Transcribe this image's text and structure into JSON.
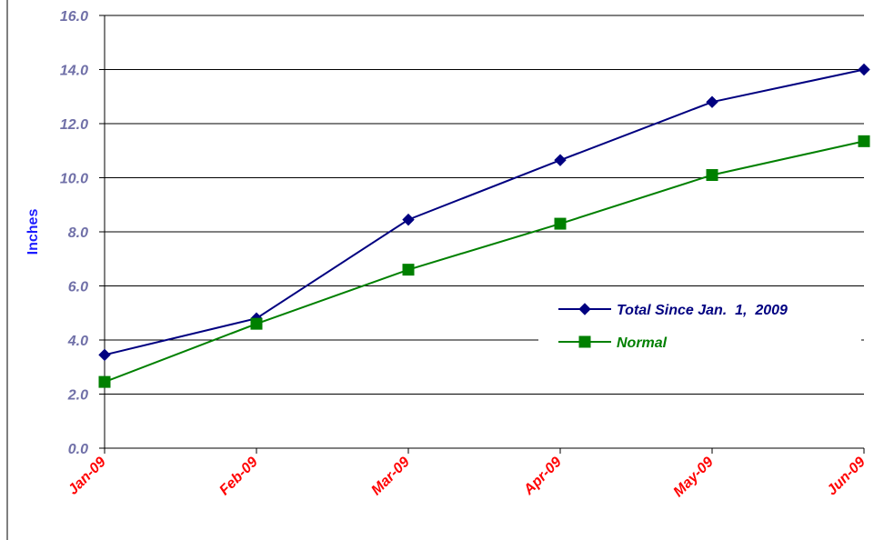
{
  "chart_data": {
    "type": "line",
    "categories": [
      "Jan-09",
      "Feb-09",
      "Mar-09",
      "Apr-09",
      "May-09",
      "Jun-09"
    ],
    "series": [
      {
        "name": "Total Since Jan.  1,  2009",
        "values": [
          3.45,
          4.8,
          8.45,
          10.65,
          12.8,
          14.0
        ],
        "color": "#000080",
        "marker": "diamond"
      },
      {
        "name": "Normal",
        "values": [
          2.45,
          4.6,
          6.6,
          8.3,
          10.1,
          11.35
        ],
        "color": "#008000",
        "marker": "square"
      }
    ],
    "yticks": [
      "0.0",
      "2.0",
      "4.0",
      "6.0",
      "8.0",
      "10.0",
      "12.0",
      "14.0",
      "16.0"
    ],
    "ylim": [
      0,
      16
    ],
    "ylabel": "Inches",
    "xlabel": "",
    "title": "",
    "grid": true,
    "legend": "center-right",
    "colors": {
      "ytick": "#7070a8",
      "xtick": "#ff0000",
      "ylabel": "#1c1cff"
    }
  }
}
